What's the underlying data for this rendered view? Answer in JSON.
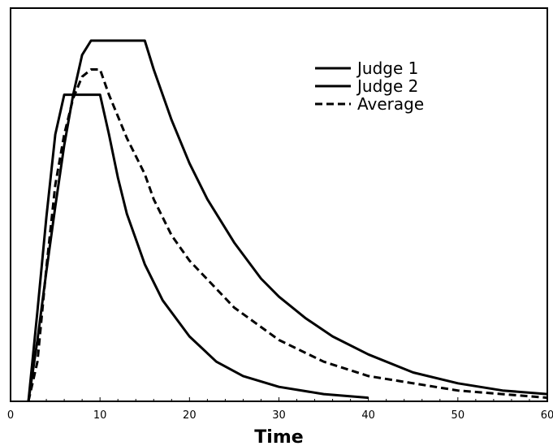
{
  "chart_data": {
    "type": "line",
    "title": "",
    "xlabel": "Time",
    "ylabel": "",
    "xlim": [
      0,
      60
    ],
    "ylim": [
      0,
      1.09
    ],
    "x_ticks": [
      0,
      10,
      20,
      30,
      40,
      50,
      60
    ],
    "grid": false,
    "legend_position": "top-right",
    "series": [
      {
        "name": "Judge 1",
        "style": "solid",
        "color": "#000000",
        "x": [
          2,
          3,
          4,
          5,
          6,
          7,
          8,
          9,
          10,
          12,
          15,
          16,
          18,
          20,
          22,
          25,
          28,
          30,
          33,
          36,
          40,
          45,
          50,
          55,
          60
        ],
        "y": [
          0,
          0.17,
          0.36,
          0.54,
          0.71,
          0.85,
          0.96,
          1.0,
          1.0,
          1.0,
          1.0,
          0.92,
          0.78,
          0.66,
          0.56,
          0.44,
          0.34,
          0.29,
          0.23,
          0.18,
          0.13,
          0.08,
          0.05,
          0.03,
          0.02
        ]
      },
      {
        "name": "Judge 2",
        "style": "solid",
        "color": "#000000",
        "x": [
          2,
          3,
          4,
          5,
          6,
          7,
          8,
          9,
          10,
          11,
          12,
          13,
          15,
          17,
          20,
          23,
          26,
          30,
          35,
          40
        ],
        "y": [
          0,
          0.25,
          0.51,
          0.74,
          0.85,
          0.85,
          0.85,
          0.85,
          0.85,
          0.74,
          0.62,
          0.52,
          0.38,
          0.28,
          0.18,
          0.11,
          0.07,
          0.04,
          0.02,
          0.01
        ]
      },
      {
        "name": "Average",
        "style": "dashed",
        "color": "#000000",
        "x": [
          2,
          3,
          4,
          5,
          6,
          7,
          8,
          9,
          10,
          11,
          12,
          13,
          15,
          16,
          18,
          20,
          25,
          30,
          35,
          40,
          50,
          60
        ],
        "y": [
          0,
          0.11,
          0.37,
          0.6,
          0.74,
          0.84,
          0.9,
          0.92,
          0.92,
          0.85,
          0.79,
          0.73,
          0.63,
          0.56,
          0.46,
          0.39,
          0.26,
          0.17,
          0.11,
          0.07,
          0.03,
          0.01
        ]
      }
    ]
  }
}
